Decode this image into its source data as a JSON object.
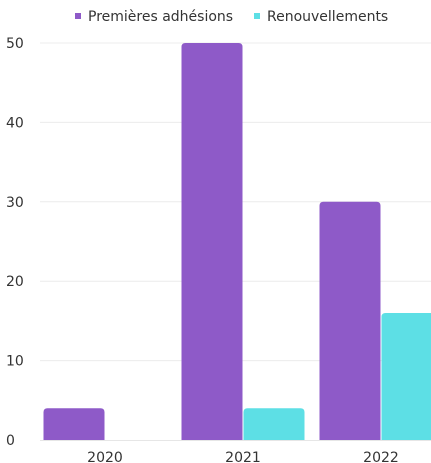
{
  "chart_data": {
    "type": "bar",
    "categories": [
      "2020",
      "2021",
      "2022"
    ],
    "series": [
      {
        "name": "Premières adhésions",
        "values": [
          4,
          50,
          30
        ],
        "color": "#8e5ac8"
      },
      {
        "name": "Renouvellements",
        "values": [
          0,
          4,
          16
        ],
        "color": "#5ddfe5"
      }
    ],
    "ylim": [
      0,
      50
    ],
    "yticks": [
      0,
      10,
      20,
      30,
      40,
      50
    ],
    "grid": true,
    "legend_position": "top-right"
  }
}
